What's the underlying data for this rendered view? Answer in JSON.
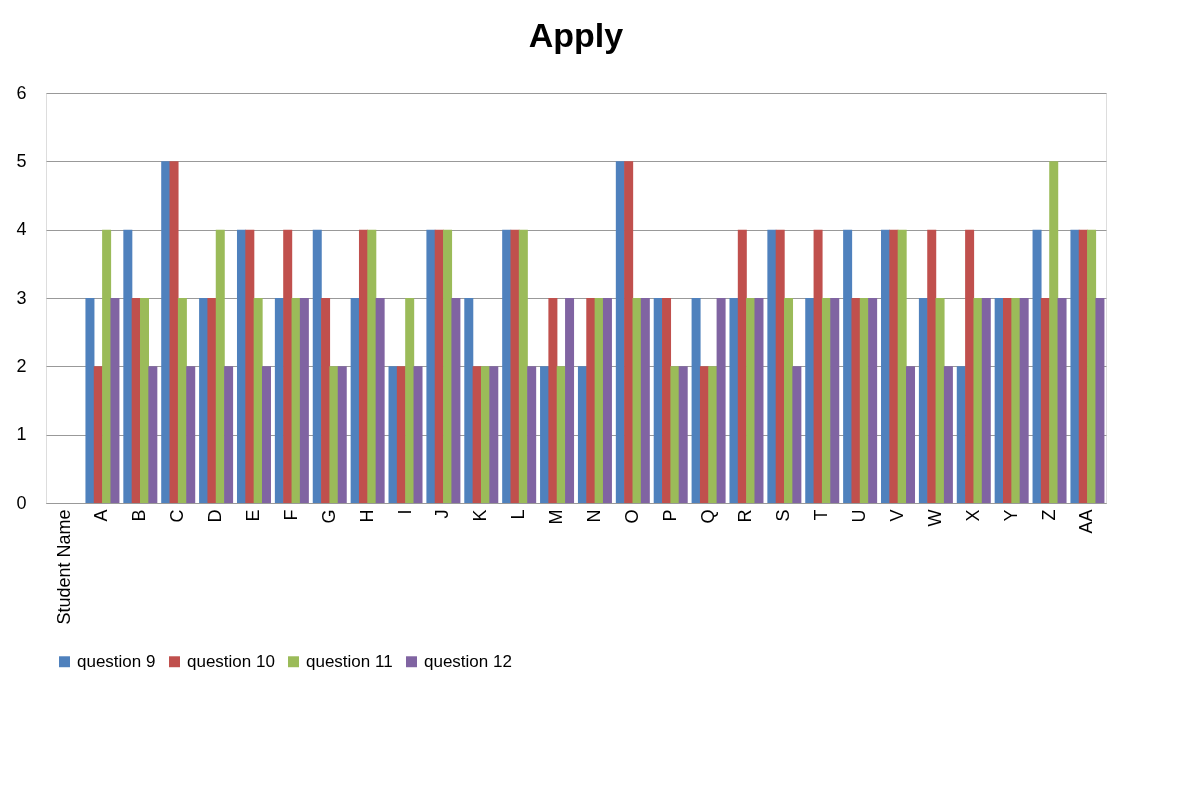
{
  "chart_data": {
    "type": "bar",
    "title": "Apply",
    "categories": [
      "Student Name",
      "A",
      "B",
      "C",
      "D",
      "E",
      "F",
      "G",
      "H",
      "I",
      "J",
      "K",
      "L",
      "M",
      "N",
      "O",
      "P",
      "Q",
      "R",
      "S",
      "T",
      "U",
      "V",
      "W",
      "X",
      "Y",
      "Z",
      "AA"
    ],
    "series": [
      {
        "name": "question 9",
        "color": "#4f81bd",
        "values": [
          null,
          3,
          4,
          5,
          3,
          4,
          3,
          4,
          3,
          2,
          4,
          3,
          4,
          2,
          2,
          5,
          3,
          3,
          3,
          4,
          3,
          4,
          4,
          3,
          2,
          3,
          4,
          4
        ]
      },
      {
        "name": "question 10",
        "color": "#c0504d",
        "values": [
          null,
          2,
          3,
          5,
          3,
          4,
          4,
          3,
          4,
          2,
          4,
          2,
          4,
          3,
          3,
          5,
          3,
          2,
          4,
          4,
          4,
          3,
          4,
          4,
          4,
          3,
          3,
          4
        ]
      },
      {
        "name": "question 11",
        "color": "#9bbb59",
        "values": [
          null,
          4,
          3,
          3,
          4,
          3,
          3,
          2,
          4,
          3,
          4,
          2,
          4,
          2,
          3,
          3,
          2,
          2,
          3,
          3,
          3,
          3,
          4,
          3,
          3,
          3,
          5,
          4
        ]
      },
      {
        "name": "question 12",
        "color": "#8064a2",
        "values": [
          null,
          3,
          2,
          2,
          2,
          2,
          3,
          2,
          3,
          2,
          3,
          2,
          2,
          3,
          3,
          3,
          2,
          3,
          3,
          2,
          3,
          3,
          2,
          2,
          3,
          3,
          3,
          3
        ]
      }
    ],
    "ylim": [
      0,
      6
    ],
    "yticks": [
      0,
      1,
      2,
      3,
      4,
      5,
      6
    ],
    "grid": "y",
    "legend": "bottom"
  }
}
